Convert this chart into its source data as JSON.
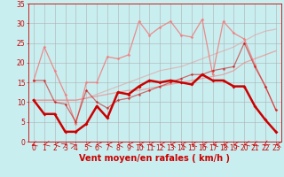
{
  "background_color": "#c8eef0",
  "grid_color": "#b0b0b0",
  "xlabel": "Vent moyen/en rafales ( km/h )",
  "xlabel_color": "#cc0000",
  "xlabel_fontsize": 7,
  "tick_color": "#cc0000",
  "tick_fontsize": 5.5,
  "xlim": [
    -0.5,
    23.5
  ],
  "ylim": [
    0,
    35
  ],
  "yticks": [
    0,
    5,
    10,
    15,
    20,
    25,
    30,
    35
  ],
  "xticks": [
    0,
    1,
    2,
    3,
    4,
    5,
    6,
    7,
    8,
    9,
    10,
    11,
    12,
    13,
    14,
    15,
    16,
    17,
    18,
    19,
    20,
    21,
    22,
    23
  ],
  "series": [
    {
      "x": [
        0,
        1,
        2,
        3,
        4,
        5,
        6,
        7,
        8,
        9,
        10,
        11,
        12,
        13,
        14,
        15,
        16,
        17,
        18,
        19,
        20,
        21,
        22,
        23
      ],
      "y": [
        10.5,
        7,
        7,
        2.5,
        2.5,
        4.5,
        9,
        6,
        12.5,
        12,
        14,
        15.5,
        15,
        15.5,
        15,
        14.5,
        17,
        15.5,
        15.5,
        14,
        14,
        9,
        5.5,
        2.5
      ],
      "color": "#cc0000",
      "linewidth": 1.8,
      "marker": "D",
      "markersize": 2.0,
      "alpha": 1.0,
      "zorder": 5
    },
    {
      "x": [
        0,
        1,
        2,
        3,
        4,
        5,
        6,
        7,
        8,
        9,
        10,
        11,
        12,
        13,
        14,
        15,
        16,
        17,
        18,
        19,
        20,
        21,
        22,
        23
      ],
      "y": [
        15.5,
        15.5,
        10,
        9.5,
        5,
        13,
        10,
        8.5,
        10.5,
        11,
        12,
        13,
        14,
        15,
        16,
        17,
        17,
        18,
        18.5,
        19,
        25,
        19,
        14,
        8
      ],
      "color": "#cc0000",
      "linewidth": 0.9,
      "marker": "D",
      "markersize": 1.8,
      "alpha": 0.55,
      "zorder": 4
    },
    {
      "x": [
        0,
        1,
        2,
        3,
        4,
        5,
        6,
        7,
        8,
        9,
        10,
        11,
        12,
        13,
        14,
        15,
        16,
        17,
        18,
        19,
        20,
        21,
        22,
        23
      ],
      "y": [
        15.5,
        24,
        18,
        12,
        4.5,
        15,
        15,
        21.5,
        21,
        22,
        30.5,
        27,
        29,
        30.5,
        27,
        26.5,
        31,
        17,
        30.5,
        27.5,
        26,
        19.5,
        14,
        8
      ],
      "color": "#f08080",
      "linewidth": 0.9,
      "marker": "D",
      "markersize": 1.8,
      "alpha": 0.9,
      "zorder": 3
    },
    {
      "x": [
        0,
        1,
        2,
        3,
        4,
        5,
        6,
        7,
        8,
        9,
        10,
        11,
        12,
        13,
        14,
        15,
        16,
        17,
        18,
        19,
        20,
        21,
        22,
        23
      ],
      "y": [
        10.5,
        10.5,
        10.5,
        10.5,
        10.5,
        11,
        11.5,
        12,
        12.5,
        13,
        13,
        13.5,
        14,
        14.5,
        15,
        15.5,
        16,
        16.5,
        17,
        18,
        20,
        21,
        22,
        23
      ],
      "color": "#f08080",
      "linewidth": 0.9,
      "marker": null,
      "markersize": 0,
      "alpha": 0.65,
      "zorder": 2
    },
    {
      "x": [
        0,
        1,
        2,
        3,
        4,
        5,
        6,
        7,
        8,
        9,
        10,
        11,
        12,
        13,
        14,
        15,
        16,
        17,
        18,
        19,
        20,
        21,
        22,
        23
      ],
      "y": [
        10.5,
        10.5,
        10.5,
        10.5,
        10.5,
        11,
        12,
        13,
        14,
        15,
        16,
        17,
        18,
        18.5,
        19,
        20,
        21,
        22,
        23,
        24,
        25.5,
        27,
        28,
        28.5
      ],
      "color": "#f08080",
      "linewidth": 0.9,
      "marker": null,
      "markersize": 0,
      "alpha": 0.45,
      "zorder": 1
    }
  ],
  "arrow_color": "#cc0000",
  "arrow_angles": [
    225,
    210,
    195,
    45,
    30,
    195,
    180,
    180,
    180,
    180,
    180,
    195,
    180,
    180,
    180,
    195,
    180,
    195,
    180,
    195,
    210,
    225,
    240,
    180
  ]
}
